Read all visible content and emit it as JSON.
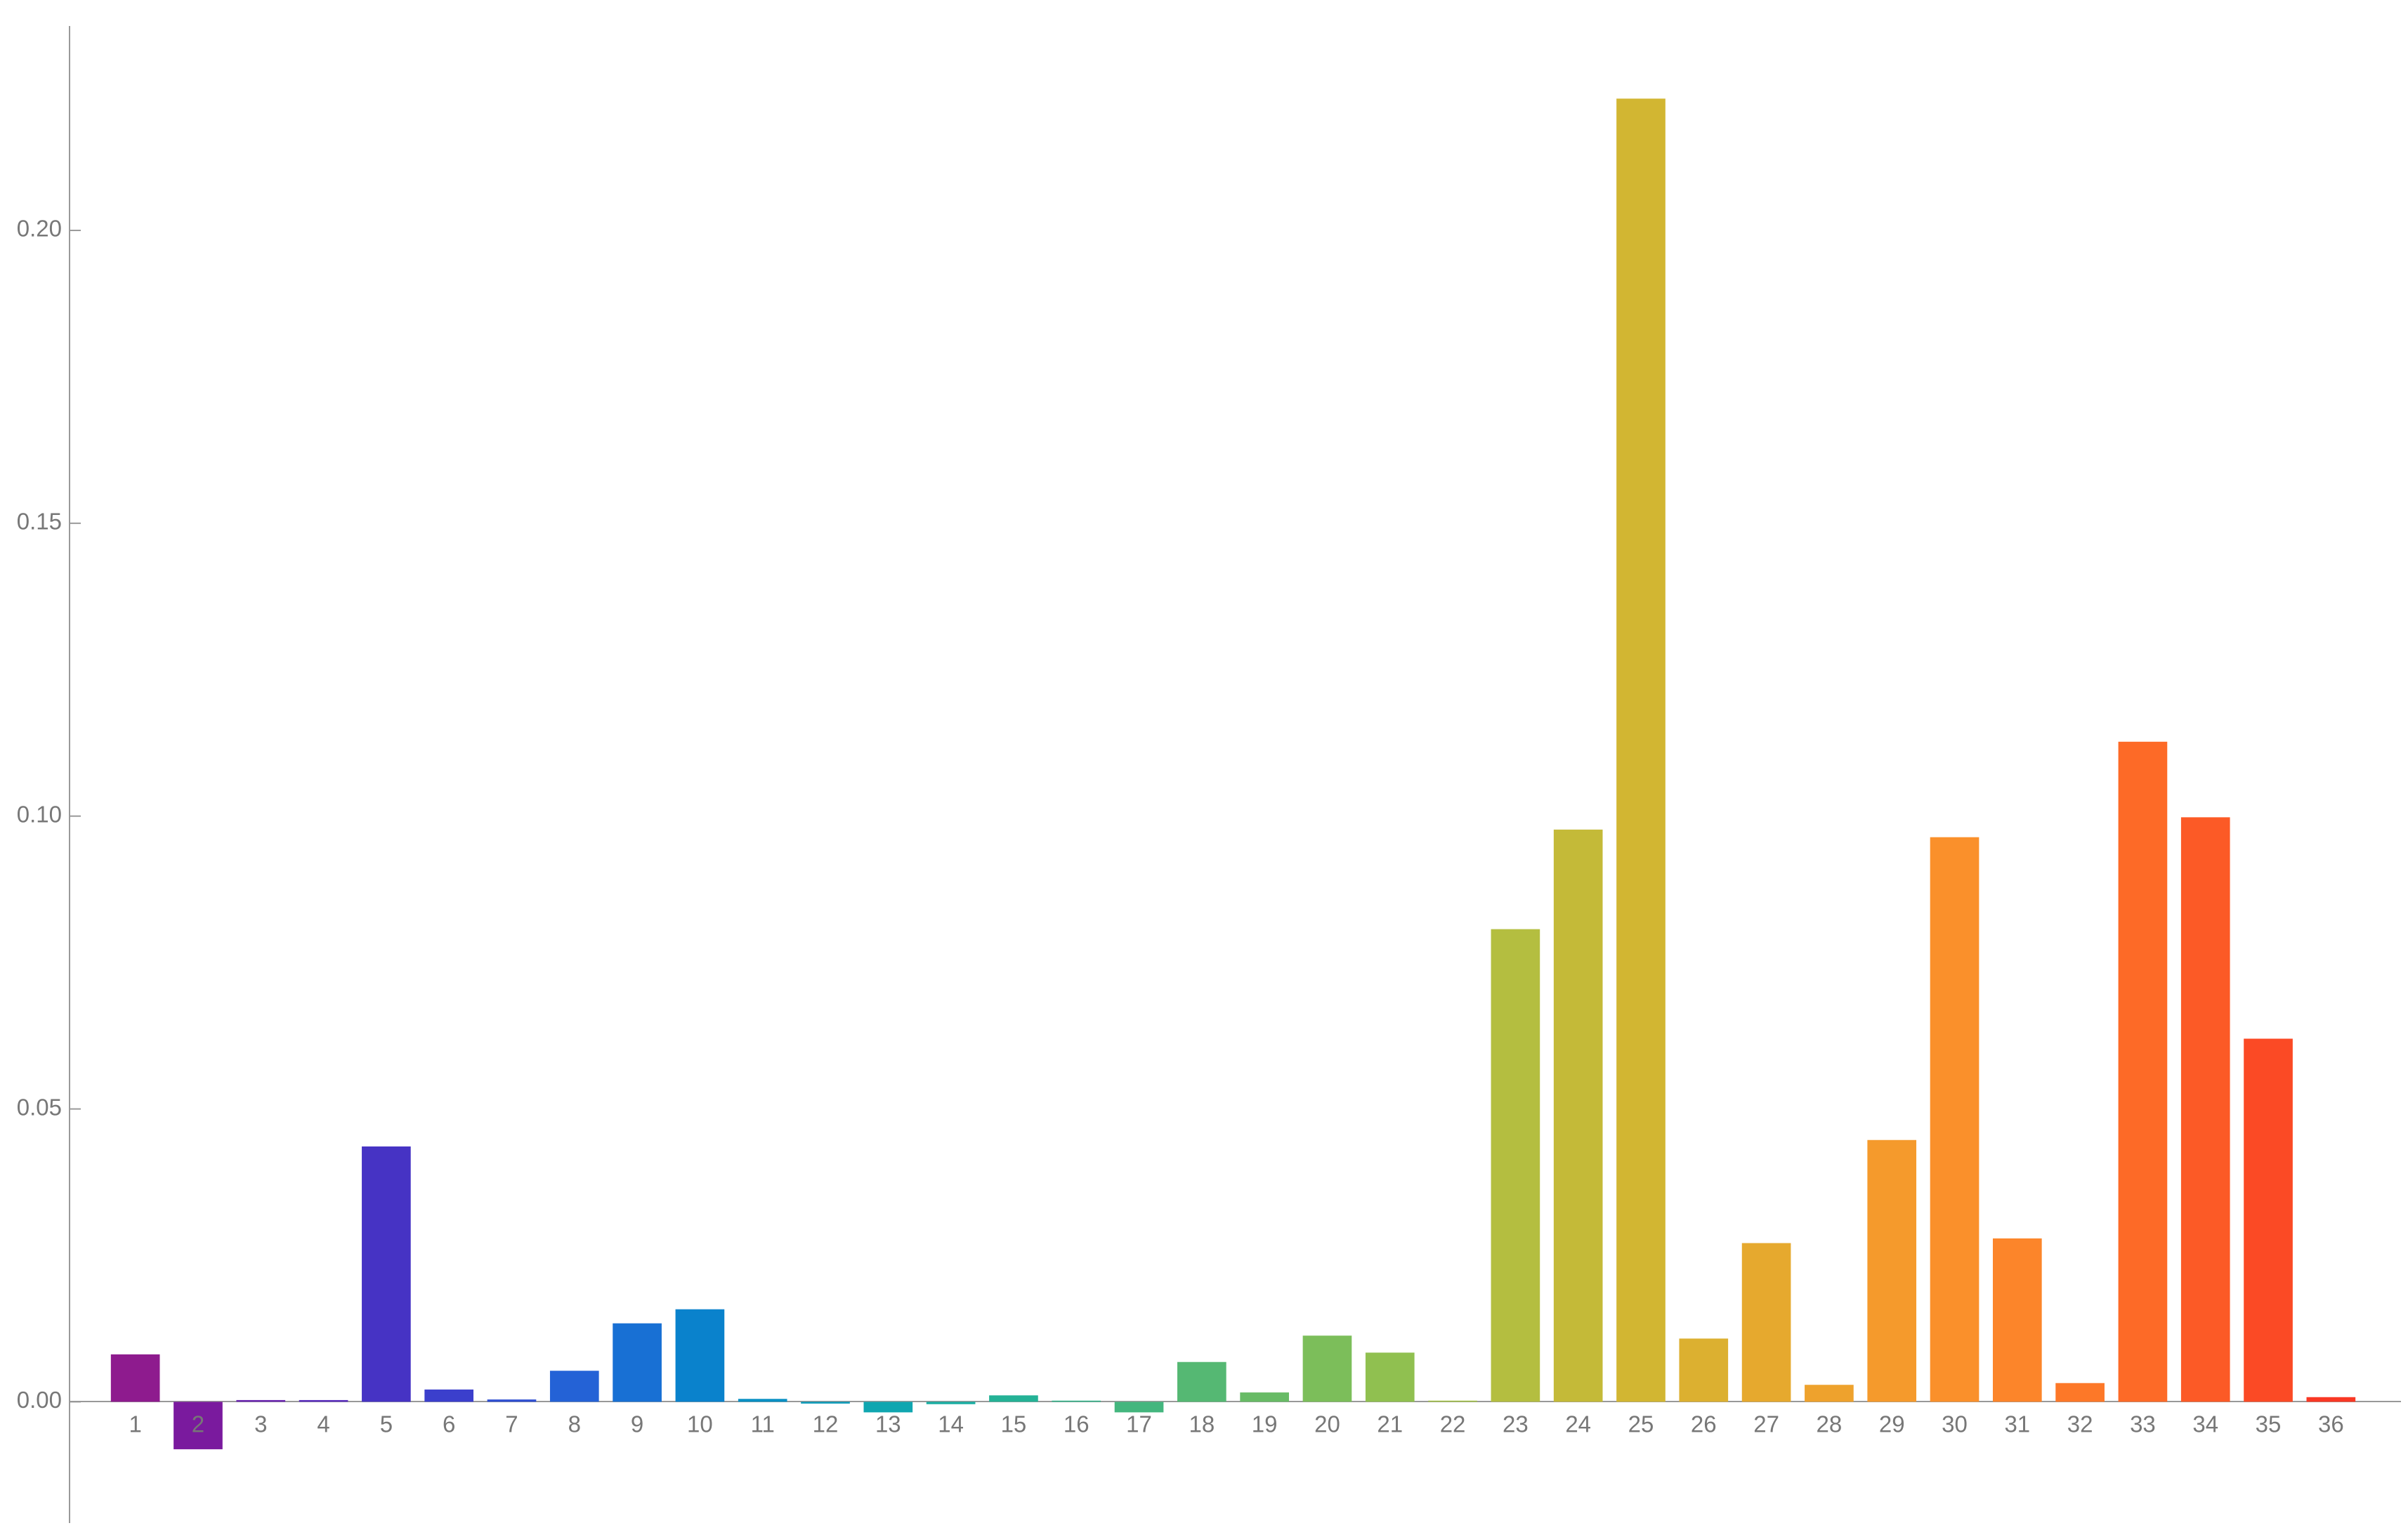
{
  "chart_data": {
    "type": "bar",
    "categories": [
      "1",
      "2",
      "3",
      "4",
      "5",
      "6",
      "7",
      "8",
      "9",
      "10",
      "11",
      "12",
      "13",
      "14",
      "15",
      "16",
      "17",
      "18",
      "19",
      "20",
      "21",
      "22",
      "23",
      "24",
      "25",
      "26",
      "27",
      "28",
      "29",
      "30",
      "31",
      "32",
      "33",
      "34",
      "35",
      "36"
    ],
    "values": [
      0.0081,
      -0.0081,
      0.0003,
      0.0003,
      0.0436,
      0.0021,
      0.0004,
      0.0053,
      0.0134,
      0.0158,
      0.0005,
      -0.0003,
      -0.0018,
      -0.0004,
      0.0011,
      0.0002,
      -0.0018,
      0.0068,
      0.0016,
      0.0113,
      0.0084,
      0.0002,
      0.0807,
      0.0977,
      0.2225,
      0.0108,
      0.0271,
      0.0029,
      0.0447,
      0.0964,
      0.0279,
      0.0032,
      0.1127,
      0.0998,
      0.062,
      0.0008
    ],
    "colors": [
      "#8e1b8e",
      "#7a1a9e",
      "#6a25b0",
      "#5a2dbd",
      "#4633c4",
      "#3b3fcc",
      "#3050d2",
      "#2462d6",
      "#1870d4",
      "#0a82cc",
      "#0a90c4",
      "#0a9ab8",
      "#10a6b0",
      "#18ada2",
      "#24b296",
      "#34b48a",
      "#44b67e",
      "#55b873",
      "#68bb66",
      "#7cbe5a",
      "#90c050",
      "#a2c046",
      "#b4be40",
      "#c4ba38",
      "#d2b632",
      "#dcb030",
      "#e6a92e",
      "#eea22d",
      "#f59a2c",
      "#fa902b",
      "#fc852a",
      "#fd7828",
      "#fd6a27",
      "#fc5a26",
      "#fb4a25",
      "#f93824"
    ],
    "ylim": [
      -0.0207,
      0.2349
    ],
    "yticks": [
      {
        "value": 0,
        "label": "0.00"
      },
      {
        "value": 0.05,
        "label": "0.05"
      },
      {
        "value": 0.1,
        "label": "0.10"
      },
      {
        "value": 0.15,
        "label": "0.15"
      },
      {
        "value": 0.2,
        "label": "0.20"
      }
    ],
    "grid": false
  }
}
